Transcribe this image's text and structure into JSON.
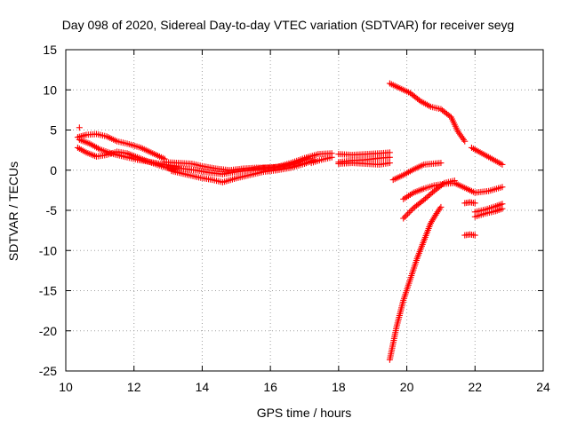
{
  "chart_data": {
    "type": "scatter",
    "title": "Day 098 of 2020, Sidereal Day-to-day VTEC variation (SDTVAR) for receiver seyg",
    "xlabel": "GPS time / hours",
    "ylabel": "SDTVAR / TECUs",
    "xlim": [
      10,
      24
    ],
    "ylim": [
      -25,
      15
    ],
    "xticks": [
      10,
      12,
      14,
      16,
      18,
      20,
      22,
      24
    ],
    "yticks": [
      15,
      10,
      5,
      0,
      -5,
      -10,
      -15,
      -20,
      -25
    ],
    "grid": true,
    "marker": "+",
    "color": "#ff0000",
    "segments": [
      {
        "x": [
          10.35,
          10.6,
          10.9,
          11.2,
          11.5,
          11.8,
          12.2,
          12.6,
          12.9
        ],
        "y": [
          4.1,
          4.4,
          4.5,
          4.2,
          3.6,
          3.3,
          2.8,
          2.0,
          1.4
        ]
      },
      {
        "x": [
          10.4,
          10.7,
          11.0,
          11.4,
          11.8,
          12.1,
          12.5,
          12.9,
          13.3
        ],
        "y": [
          3.8,
          3.3,
          2.6,
          2.0,
          1.6,
          1.3,
          1.0,
          0.7,
          0.4
        ]
      },
      {
        "x": [
          10.35,
          10.6,
          10.9,
          11.2,
          11.5,
          11.8,
          12.1,
          12.4,
          12.8,
          13.2
        ],
        "y": [
          2.8,
          2.2,
          1.7,
          1.9,
          2.3,
          2.1,
          1.6,
          1.1,
          0.5,
          0.0
        ]
      },
      {
        "x": [
          10.4
        ],
        "y": [
          5.3
        ]
      },
      {
        "x": [
          12.9,
          13.3,
          13.7,
          14.0,
          14.4,
          14.8,
          15.2,
          15.6,
          16.0,
          16.4,
          16.8,
          17.1
        ],
        "y": [
          1.0,
          0.9,
          0.8,
          0.5,
          0.2,
          0.0,
          0.2,
          0.3,
          0.3,
          0.5,
          0.9,
          1.5
        ]
      },
      {
        "x": [
          13.0,
          13.4,
          13.8,
          14.2,
          14.6,
          15.0,
          15.4,
          15.8,
          16.2,
          16.6,
          17.0,
          17.4,
          17.8
        ],
        "y": [
          0.3,
          0.2,
          0.0,
          -0.3,
          -0.5,
          -0.2,
          0.0,
          0.3,
          0.4,
          0.9,
          1.5,
          2.0,
          2.1
        ]
      },
      {
        "x": [
          13.1,
          13.5,
          13.9,
          14.3,
          14.6,
          15.0,
          15.4,
          15.8,
          16.2,
          16.6,
          17.0,
          17.3
        ],
        "y": [
          -0.1,
          -0.5,
          -0.9,
          -1.2,
          -1.5,
          -1.0,
          -0.6,
          -0.2,
          0.0,
          0.3,
          0.8,
          1.3
        ]
      },
      {
        "x": [
          17.2,
          17.5,
          17.8
        ],
        "y": [
          0.9,
          1.3,
          1.6
        ]
      },
      {
        "x": [
          18.0,
          18.4,
          18.8,
          19.2,
          19.5
        ],
        "y": [
          2.0,
          1.9,
          2.0,
          2.1,
          2.2
        ]
      },
      {
        "x": [
          18.0,
          18.4,
          18.8,
          19.2,
          19.5
        ],
        "y": [
          1.0,
          1.2,
          1.3,
          1.5,
          1.6
        ]
      },
      {
        "x": [
          18.0,
          18.4,
          18.8,
          19.2,
          19.5
        ],
        "y": [
          0.8,
          0.9,
          0.8,
          0.7,
          0.9
        ]
      },
      {
        "x": [
          19.5,
          19.8,
          20.1,
          20.4,
          20.7,
          21.0,
          21.3,
          21.5,
          21.7
        ],
        "y": [
          10.8,
          10.2,
          9.6,
          8.6,
          7.9,
          7.6,
          6.6,
          4.8,
          3.6
        ]
      },
      {
        "x": [
          21.9,
          22.2,
          22.5,
          22.8
        ],
        "y": [
          2.8,
          2.1,
          1.4,
          0.7
        ]
      },
      {
        "x": [
          19.6,
          19.9,
          20.2,
          20.5,
          21.0
        ],
        "y": [
          -1.2,
          -0.6,
          0.1,
          0.7,
          0.9
        ]
      },
      {
        "x": [
          19.9,
          20.2,
          20.5,
          20.8,
          21.1,
          21.4,
          21.7,
          22.0,
          22.4,
          22.8
        ],
        "y": [
          -3.6,
          -2.8,
          -2.3,
          -1.9,
          -1.7,
          -1.6,
          -2.2,
          -2.8,
          -2.6,
          -2.1
        ]
      },
      {
        "x": [
          19.9,
          20.2,
          20.5,
          20.8,
          21.1,
          21.4
        ],
        "y": [
          -6.0,
          -4.7,
          -3.7,
          -2.6,
          -1.6,
          -1.3
        ]
      },
      {
        "x": [
          19.5,
          19.7,
          19.9,
          20.1,
          20.3,
          20.5,
          20.7,
          20.9,
          21.0
        ],
        "y": [
          -23.6,
          -19.5,
          -16.2,
          -13.6,
          -11.0,
          -8.8,
          -6.6,
          -5.2,
          -4.6
        ]
      },
      {
        "x": [
          21.7,
          21.85,
          22.0
        ],
        "y": [
          -4.1,
          -4.0,
          -4.1
        ]
      },
      {
        "x": [
          21.7,
          21.85,
          22.0
        ],
        "y": [
          -8.1,
          -8.0,
          -8.1
        ]
      },
      {
        "x": [
          22.0,
          22.3,
          22.6,
          22.8
        ],
        "y": [
          -5.8,
          -5.4,
          -5.1,
          -4.8
        ]
      },
      {
        "x": [
          22.0,
          22.3,
          22.6,
          22.8
        ],
        "y": [
          -5.2,
          -4.9,
          -4.5,
          -4.2
        ]
      }
    ]
  }
}
